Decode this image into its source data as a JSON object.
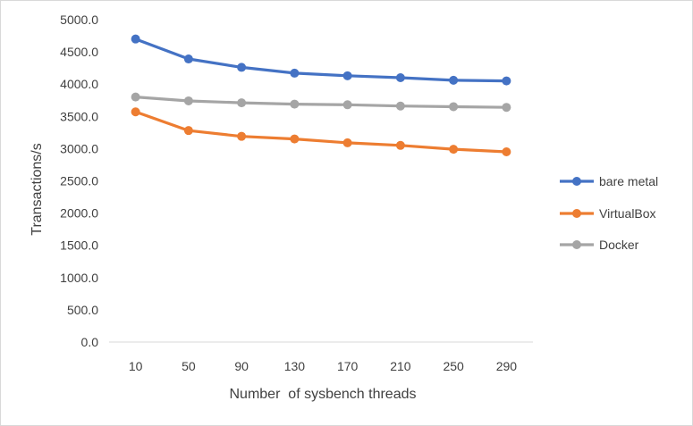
{
  "chart_data": {
    "type": "line",
    "title": "",
    "xlabel": "Number  of sysbench threads",
    "ylabel": "Transactions/s",
    "categories": [
      "10",
      "50",
      "90",
      "130",
      "170",
      "210",
      "250",
      "290"
    ],
    "ylim": [
      0,
      5000
    ],
    "yticks": [
      "0.0",
      "500.0",
      "1000.0",
      "1500.0",
      "2000.0",
      "2500.0",
      "3000.0",
      "3500.0",
      "4000.0",
      "4500.0",
      "5000.0"
    ],
    "grid": false,
    "legend": "right",
    "series": [
      {
        "name": "bare metal",
        "color": "#4472c4",
        "values": [
          4700,
          4390,
          4260,
          4170,
          4130,
          4100,
          4060,
          4050
        ]
      },
      {
        "name": "VirtualBox",
        "color": "#ed7d31",
        "values": [
          3570,
          3280,
          3190,
          3150,
          3090,
          3050,
          2990,
          2950
        ]
      },
      {
        "name": "Docker",
        "color": "#a5a5a5",
        "values": [
          3800,
          3740,
          3710,
          3690,
          3680,
          3660,
          3650,
          3640
        ]
      }
    ]
  }
}
